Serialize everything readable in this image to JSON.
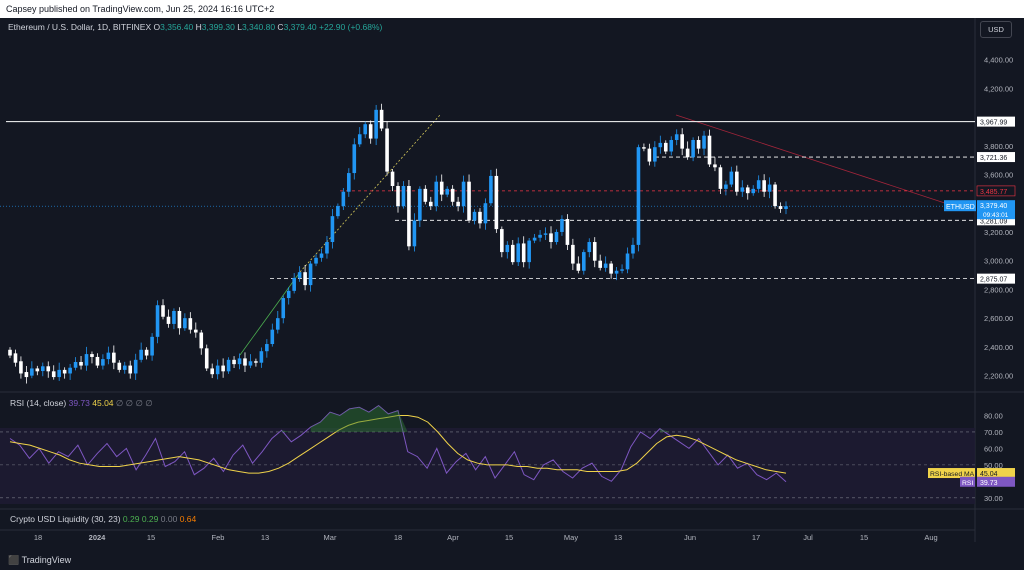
{
  "header": {
    "published": "Capsey published on TradingView.com, Jun 25, 2024 16:16 UTC+2"
  },
  "symbol": {
    "title": "Ethereum / U.S. Dollar, 1D, BITFINEX",
    "o_label": "O",
    "o": "3,356.40",
    "h_label": "H",
    "h": "3,399.30",
    "l_label": "L",
    "l": "3,340.80",
    "c_label": "C",
    "c": "3,379.40",
    "change": "+22.90 (+0.68%)"
  },
  "currency_button": "USD",
  "price_axis": {
    "ticks": [
      "4,400.00",
      "4,200.00",
      "3,800.00",
      "3,600.00",
      "3,200.00",
      "3,000.00",
      "2,800.00",
      "2,600.00",
      "2,400.00",
      "2,200.00"
    ],
    "markers": [
      {
        "label": "3,967.99",
        "price": 3967.99,
        "style": "white-solid"
      },
      {
        "label": "3,721.36",
        "price": 3721.36,
        "style": "white-dash"
      },
      {
        "label": "3,485.77",
        "price": 3485.77,
        "style": "red-dash"
      },
      {
        "label": "3,281.09",
        "price": 3281.09,
        "style": "white-dash"
      },
      {
        "label": "2,875.07",
        "price": 2875.07,
        "style": "white-dash"
      }
    ],
    "last_price": {
      "symbol": "ETHUSD",
      "price": "3,379.40",
      "countdown": "09:43:01"
    }
  },
  "price_range": [
    2100,
    4550
  ],
  "candles": [
    [
      2380,
      2340
    ],
    [
      2355,
      2290
    ],
    [
      2300,
      2215
    ],
    [
      2225,
      2190
    ],
    [
      2200,
      2250
    ],
    [
      2250,
      2230
    ],
    [
      2232,
      2265
    ],
    [
      2265,
      2230
    ],
    [
      2230,
      2190
    ],
    [
      2190,
      2240
    ],
    [
      2240,
      2215
    ],
    [
      2215,
      2255
    ],
    [
      2255,
      2295
    ],
    [
      2295,
      2270
    ],
    [
      2270,
      2350
    ],
    [
      2350,
      2330
    ],
    [
      2330,
      2270
    ],
    [
      2270,
      2315
    ],
    [
      2315,
      2360
    ],
    [
      2360,
      2290
    ],
    [
      2290,
      2240
    ],
    [
      2240,
      2270
    ],
    [
      2270,
      2215
    ],
    [
      2215,
      2310
    ],
    [
      2310,
      2380
    ],
    [
      2380,
      2340
    ],
    [
      2340,
      2470
    ],
    [
      2470,
      2690
    ],
    [
      2690,
      2610
    ],
    [
      2610,
      2560
    ],
    [
      2560,
      2650
    ],
    [
      2650,
      2530
    ],
    [
      2530,
      2600
    ],
    [
      2600,
      2520
    ],
    [
      2520,
      2500
    ],
    [
      2500,
      2390
    ],
    [
      2390,
      2250
    ],
    [
      2250,
      2210
    ],
    [
      2210,
      2270
    ],
    [
      2270,
      2230
    ],
    [
      2230,
      2310
    ],
    [
      2310,
      2280
    ],
    [
      2280,
      2320
    ],
    [
      2320,
      2270
    ],
    [
      2270,
      2300
    ],
    [
      2300,
      2290
    ],
    [
      2290,
      2370
    ],
    [
      2370,
      2420
    ],
    [
      2420,
      2520
    ],
    [
      2520,
      2600
    ],
    [
      2600,
      2740
    ],
    [
      2740,
      2790
    ],
    [
      2790,
      2880
    ],
    [
      2880,
      2920
    ],
    [
      2920,
      2830
    ],
    [
      2830,
      2980
    ],
    [
      2980,
      3020
    ],
    [
      3020,
      3050
    ],
    [
      3050,
      3130
    ],
    [
      3130,
      3310
    ],
    [
      3310,
      3380
    ],
    [
      3380,
      3480
    ],
    [
      3480,
      3610
    ],
    [
      3610,
      3810
    ],
    [
      3810,
      3880
    ],
    [
      3880,
      3950
    ],
    [
      3950,
      3850
    ],
    [
      3850,
      4050
    ],
    [
      4050,
      3920
    ],
    [
      3920,
      3620
    ],
    [
      3620,
      3520
    ],
    [
      3520,
      3380
    ],
    [
      3380,
      3520
    ],
    [
      3520,
      3100
    ],
    [
      3100,
      3280
    ],
    [
      3280,
      3500
    ],
    [
      3500,
      3410
    ],
    [
      3410,
      3380
    ],
    [
      3380,
      3550
    ],
    [
      3550,
      3460
    ],
    [
      3460,
      3500
    ],
    [
      3500,
      3410
    ],
    [
      3410,
      3380
    ],
    [
      3380,
      3550
    ],
    [
      3550,
      3280
    ],
    [
      3280,
      3340
    ],
    [
      3340,
      3260
    ],
    [
      3260,
      3400
    ],
    [
      3400,
      3590
    ],
    [
      3590,
      3220
    ],
    [
      3220,
      3060
    ],
    [
      3060,
      3110
    ],
    [
      3110,
      2990
    ],
    [
      2990,
      3120
    ],
    [
      3120,
      2990
    ],
    [
      2990,
      3140
    ],
    [
      3140,
      3160
    ],
    [
      3160,
      3180
    ],
    [
      3180,
      3190
    ],
    [
      3190,
      3130
    ],
    [
      3130,
      3200
    ],
    [
      3200,
      3290
    ],
    [
      3290,
      3110
    ],
    [
      3110,
      2980
    ],
    [
      2980,
      2930
    ],
    [
      2930,
      3060
    ],
    [
      3060,
      3130
    ],
    [
      3130,
      3000
    ],
    [
      3000,
      2950
    ],
    [
      2950,
      2980
    ],
    [
      2980,
      2910
    ],
    [
      2910,
      2930
    ],
    [
      2930,
      2940
    ],
    [
      2940,
      3050
    ],
    [
      3050,
      3110
    ],
    [
      3110,
      3790
    ],
    [
      3790,
      3780
    ],
    [
      3780,
      3690
    ],
    [
      3690,
      3790
    ],
    [
      3790,
      3820
    ],
    [
      3820,
      3760
    ],
    [
      3760,
      3840
    ],
    [
      3840,
      3880
    ],
    [
      3880,
      3780
    ],
    [
      3780,
      3720
    ],
    [
      3720,
      3840
    ],
    [
      3840,
      3780
    ],
    [
      3780,
      3870
    ],
    [
      3870,
      3670
    ],
    [
      3670,
      3650
    ],
    [
      3650,
      3500
    ],
    [
      3500,
      3530
    ],
    [
      3530,
      3620
    ],
    [
      3620,
      3480
    ],
    [
      3480,
      3510
    ],
    [
      3510,
      3470
    ],
    [
      3470,
      3500
    ],
    [
      3500,
      3560
    ],
    [
      3560,
      3480
    ],
    [
      3480,
      3530
    ],
    [
      3530,
      3380
    ],
    [
      3380,
      3360
    ],
    [
      3360,
      3379
    ]
  ],
  "time_axis": {
    "labels": [
      "18",
      "2024",
      "15",
      "Feb",
      "13",
      "Mar",
      "18",
      "Apr",
      "15",
      "May",
      "13",
      "Jun",
      "17",
      "Jul",
      "15",
      "Aug"
    ]
  },
  "rsi": {
    "title": "RSI (14, close)",
    "value": "39.73",
    "ma_value": "45.04",
    "na": "∅ ∅ ∅ ∅",
    "levels": [
      "80.00",
      "70.00",
      "60.00",
      "50.00",
      "40.00",
      "30.00"
    ],
    "ma_label": "RSI-based MA",
    "ma_tag_value": "45.04",
    "rsi_label": "RSI",
    "rsi_tag_value": "39.73",
    "range": [
      25,
      87
    ],
    "ma_path": [
      64,
      63,
      62,
      60,
      58,
      56,
      53,
      51,
      50,
      49,
      49,
      49,
      50,
      51,
      52,
      53,
      54,
      55,
      54,
      53,
      51,
      49,
      47,
      46,
      45,
      45,
      46,
      48,
      51,
      55,
      59,
      63,
      67,
      71,
      74,
      76,
      77,
      78,
      79,
      80,
      80,
      79,
      76,
      70,
      63,
      57,
      53,
      51,
      50,
      50,
      50,
      49,
      49,
      48,
      48,
      47,
      47,
      47,
      46,
      46,
      46,
      46,
      47,
      51,
      57,
      63,
      67,
      68,
      67,
      65,
      62,
      59,
      56,
      53,
      51,
      49,
      47,
      46,
      45
    ],
    "rsi_path": [
      66,
      62,
      54,
      60,
      51,
      58,
      55,
      62,
      50,
      57,
      63,
      55,
      60,
      47,
      56,
      66,
      49,
      52,
      58,
      44,
      48,
      54,
      46,
      56,
      62,
      51,
      58,
      66,
      71,
      64,
      68,
      73,
      76,
      82,
      80,
      84,
      85,
      82,
      86,
      81,
      83,
      58,
      55,
      48,
      60,
      45,
      52,
      57,
      47,
      55,
      42,
      50,
      58,
      44,
      41,
      50,
      53,
      46,
      42,
      48,
      51,
      43,
      40,
      47,
      61,
      70,
      66,
      72,
      68,
      64,
      60,
      66,
      58,
      50,
      56,
      48,
      51,
      44,
      41,
      45,
      39.73
    ]
  },
  "liquidity": {
    "title": "Crypto USD Liquidity (30, 23)",
    "v1": "0.29",
    "v2": "0.29",
    "v3": "0.00",
    "v4": "0.64"
  },
  "brand": "TradingView",
  "colors": {
    "bg": "#131722",
    "up": "#2196f3",
    "down": "#ffffff",
    "rsi": "#7e57c2",
    "rsi_ma": "#f0d34a",
    "red_level": "#f23645",
    "accent_green": "#4caf50",
    "accent_orange": "#f57c00"
  }
}
